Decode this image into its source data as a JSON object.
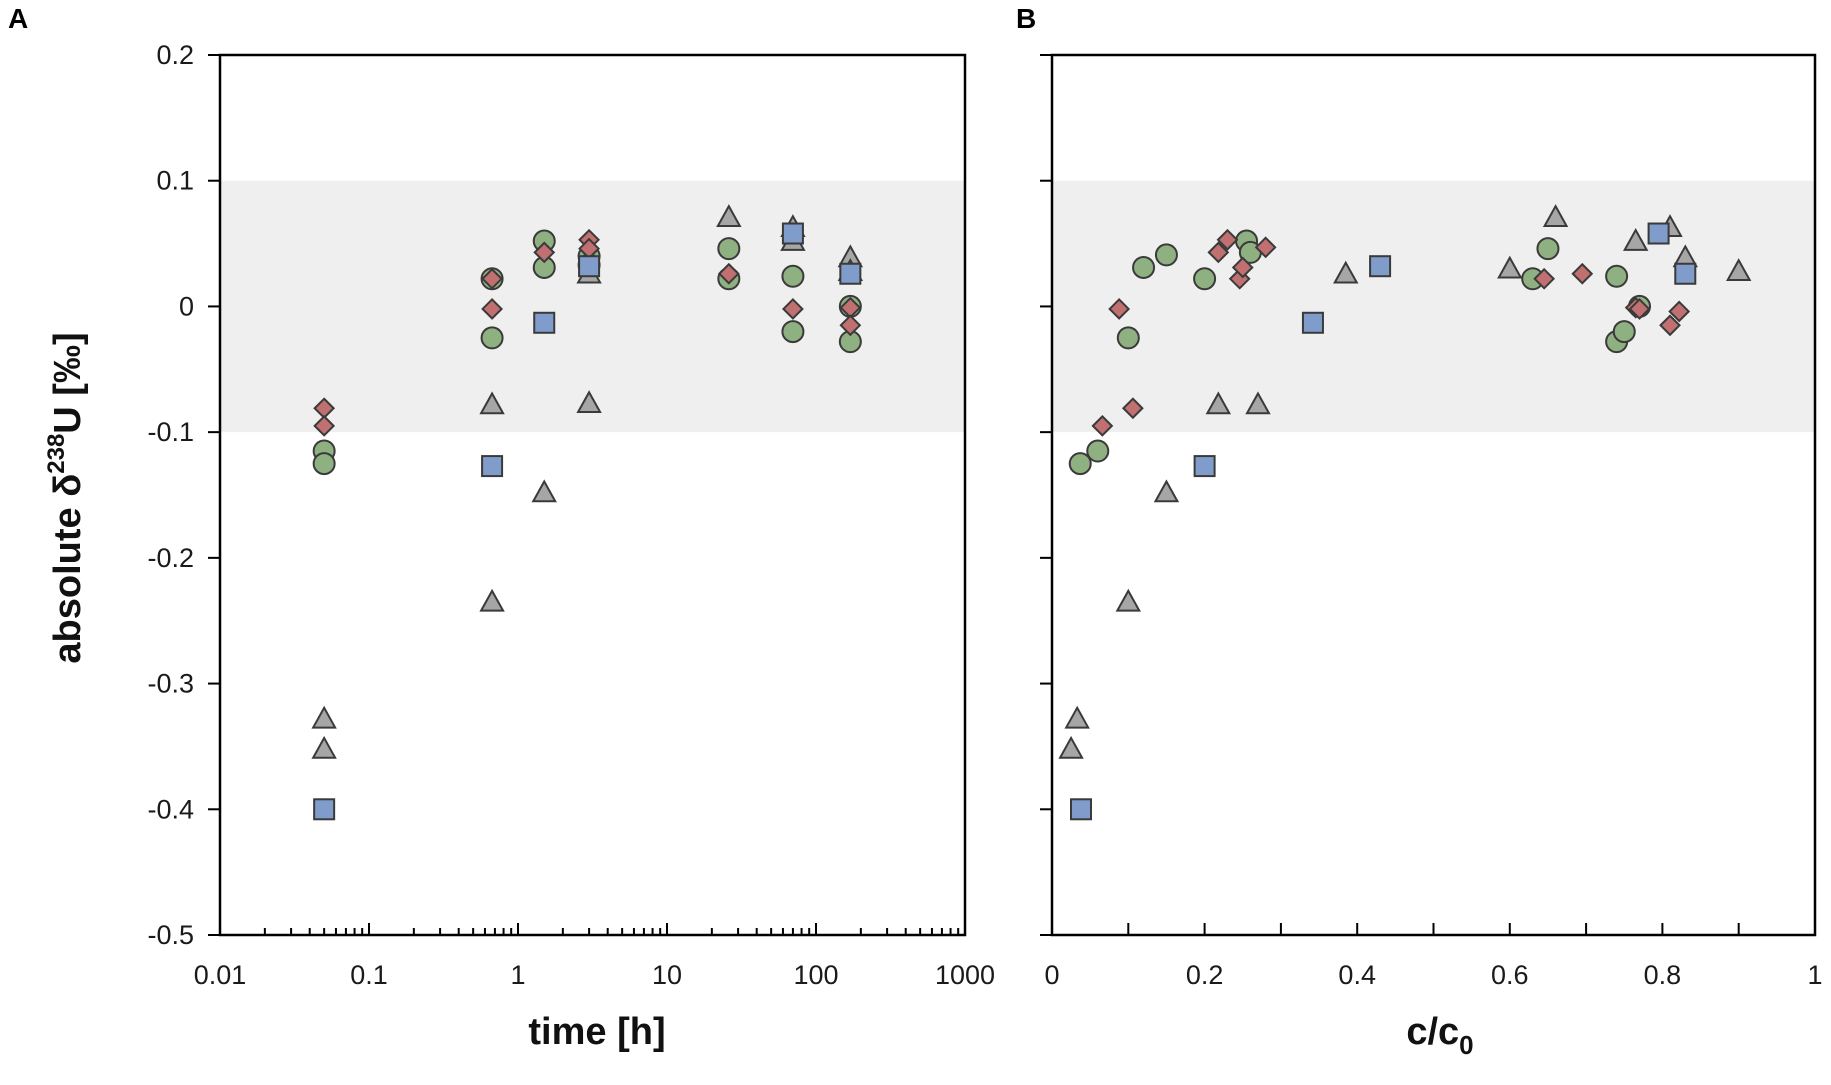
{
  "colors": {
    "band": "#efefef",
    "circle": "#8fb080",
    "diamond": "#c07070",
    "triangle": "#a6a6a6",
    "square": "#7f9ccb"
  },
  "chart_data": [
    {
      "panel": "A",
      "type": "scatter",
      "xscale": "log",
      "xlim": [
        0.01,
        1000
      ],
      "ylim": [
        -0.5,
        0.2
      ],
      "xticks": [
        "0.01",
        "0.1",
        "1",
        "10",
        "100",
        "1000"
      ],
      "yticks": [
        "0.2",
        "0.1",
        "0",
        "-0.1",
        "-0.2",
        "-0.3",
        "-0.4",
        "-0.5"
      ],
      "xlabel": "time [h]",
      "ylabel_parts": [
        "absolute δ",
        "238",
        "U [‰]"
      ],
      "band": [
        -0.1,
        0.1
      ],
      "series": [
        {
          "name": "circles",
          "marker": "circle",
          "x": [
            0.05,
            0.05,
            0.67,
            0.67,
            1.5,
            1.5,
            3,
            3,
            26,
            26,
            70,
            70,
            170,
            170
          ],
          "y": [
            -0.115,
            -0.125,
            0.022,
            -0.025,
            0.052,
            0.031,
            0.04,
            0.033,
            0.046,
            0.022,
            0.024,
            -0.02,
            0,
            -0.028
          ]
        },
        {
          "name": "diamonds",
          "marker": "diamond",
          "x": [
            0.05,
            0.05,
            0.67,
            0.67,
            1.5,
            3,
            3,
            26,
            70,
            170,
            170
          ],
          "y": [
            -0.081,
            -0.095,
            0.022,
            -0.002,
            0.043,
            0.053,
            0.046,
            0.026,
            -0.002,
            -0.001,
            -0.015
          ]
        },
        {
          "name": "triangles",
          "marker": "triangle",
          "x": [
            0.05,
            0.05,
            0.67,
            0.67,
            1.5,
            3,
            3,
            26,
            70,
            70,
            170,
            170
          ],
          "y": [
            -0.328,
            -0.352,
            -0.078,
            -0.235,
            -0.148,
            0.026,
            -0.077,
            0.071,
            0.063,
            0.052,
            0.039,
            0.028
          ]
        },
        {
          "name": "squares",
          "marker": "square",
          "x": [
            0.05,
            0.67,
            1.5,
            3,
            70,
            170
          ],
          "y": [
            -0.4,
            -0.127,
            -0.013,
            0.032,
            0.058,
            0.026
          ]
        }
      ]
    },
    {
      "panel": "B",
      "type": "scatter",
      "xscale": "linear",
      "xlim": [
        0,
        1
      ],
      "ylim": [
        -0.5,
        0.2
      ],
      "xticks": [
        "0",
        "0.2",
        "0.4",
        "0.6",
        "0.8",
        "1"
      ],
      "xlabel_parts": [
        "c/c",
        "0"
      ],
      "band": [
        -0.1,
        0.1
      ],
      "series": [
        {
          "name": "circles",
          "marker": "circle",
          "x": [
            0.037,
            0.06,
            0.1,
            0.12,
            0.15,
            0.2,
            0.255,
            0.26,
            0.63,
            0.65,
            0.74,
            0.74,
            0.75,
            0.77
          ],
          "y": [
            -0.125,
            -0.115,
            -0.025,
            0.031,
            0.041,
            0.022,
            0.052,
            0.043,
            0.022,
            0.046,
            0.024,
            -0.028,
            -0.02,
            0
          ]
        },
        {
          "name": "diamonds",
          "marker": "diamond",
          "x": [
            0.066,
            0.088,
            0.106,
            0.218,
            0.23,
            0.246,
            0.25,
            0.28,
            0.645,
            0.695,
            0.765,
            0.77,
            0.81,
            0.822
          ],
          "y": [
            -0.095,
            -0.002,
            -0.081,
            0.043,
            0.053,
            0.022,
            0.031,
            0.047,
            0.022,
            0.026,
            -0.001,
            -0.002,
            -0.015,
            -0.004
          ]
        },
        {
          "name": "triangles",
          "marker": "triangle",
          "x": [
            0.025,
            0.033,
            0.1,
            0.15,
            0.218,
            0.27,
            0.385,
            0.6,
            0.66,
            0.765,
            0.81,
            0.83,
            0.9
          ],
          "y": [
            -0.352,
            -0.328,
            -0.235,
            -0.148,
            -0.078,
            -0.078,
            0.026,
            0.03,
            0.071,
            0.052,
            0.063,
            0.039,
            0.028
          ]
        },
        {
          "name": "squares",
          "marker": "square",
          "x": [
            0.038,
            0.2,
            0.342,
            0.43,
            0.795,
            0.83
          ],
          "y": [
            -0.4,
            -0.127,
            -0.013,
            0.032,
            0.058,
            0.026
          ]
        }
      ]
    }
  ]
}
